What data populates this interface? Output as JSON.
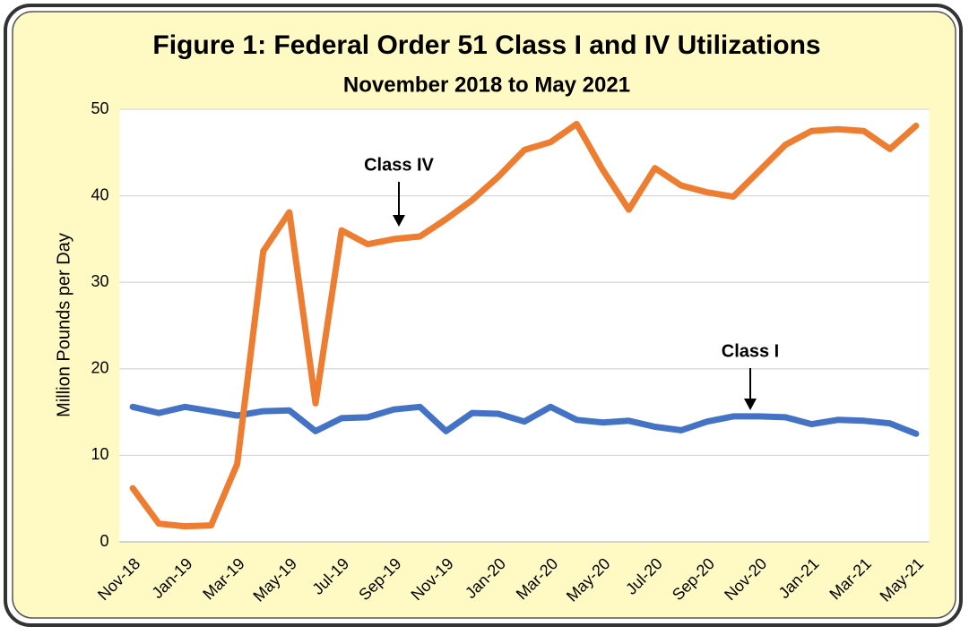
{
  "chart_data": {
    "type": "line",
    "title": "Figure 1: Federal Order 51 Class I and IV Utilizations",
    "subtitle": "November 2018 to May 2021",
    "y_label": "Million Pounds per Day",
    "categories": [
      "Nov-18",
      null,
      "Jan-19",
      null,
      "Mar-19",
      null,
      "May-19",
      null,
      "Jul-19",
      null,
      "Sep-19",
      null,
      "Nov-19",
      null,
      "Jan-20",
      null,
      "Mar-20",
      null,
      "May-20",
      null,
      "Jul-20",
      null,
      "Sep-20",
      null,
      "Nov-20",
      null,
      "Jan-21",
      null,
      "Mar-21",
      null,
      "May-21"
    ],
    "series": [
      {
        "name": "Class I",
        "color": "#4472c4",
        "values": [
          15.6,
          14.9,
          15.6,
          15.1,
          14.6,
          15.1,
          15.2,
          12.8,
          14.3,
          14.4,
          15.3,
          15.6,
          12.8,
          14.9,
          14.8,
          13.9,
          15.6,
          14.1,
          13.8,
          14.0,
          13.3,
          12.9,
          13.9,
          14.5,
          14.5,
          14.4,
          13.6,
          14.1,
          14.0,
          13.7,
          12.5
        ]
      },
      {
        "name": "Class IV",
        "color": "#ed7d31",
        "values": [
          6.2,
          2.1,
          1.8,
          1.9,
          9.0,
          33.6,
          38.1,
          16.0,
          36.0,
          34.4,
          35.0,
          35.3,
          37.3,
          39.5,
          42.2,
          45.3,
          46.2,
          48.3,
          43.0,
          38.4,
          43.2,
          41.2,
          40.4,
          39.9,
          42.9,
          45.9,
          47.5,
          47.7,
          47.5,
          45.4,
          48.1
        ]
      }
    ],
    "annotations": [
      "Class IV",
      "Class I"
    ],
    "ylim": [
      0,
      50
    ],
    "yticks": [
      0,
      10,
      20,
      30,
      40,
      50
    ],
    "grid": true
  }
}
